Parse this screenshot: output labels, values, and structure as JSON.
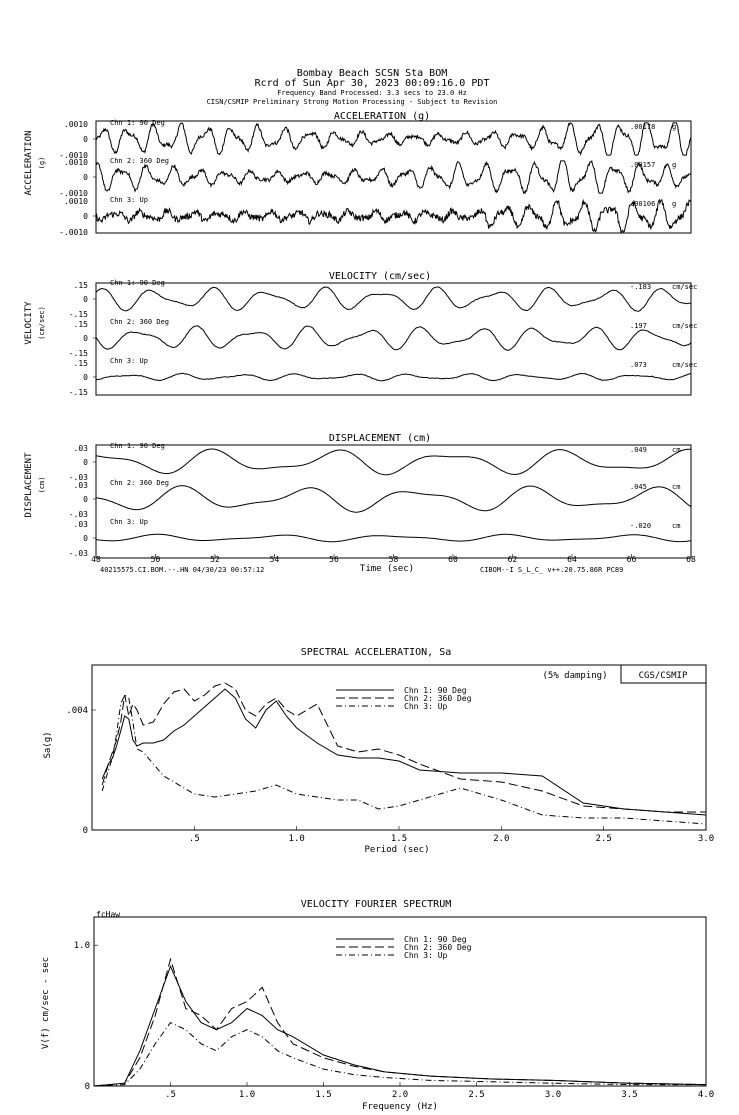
{
  "header": {
    "station": "Bombay Beach    SCSN Sta BOM",
    "record": "Rcrd of Sun Apr 30, 2023 00:09:16.0 PDT",
    "band": "Frequency Band Processed: 3.3 secs to 23.0 Hz",
    "note": "CISN/CSMIP Preliminary Strong Motion Processing - Subject to Revision"
  },
  "chart_data": [
    {
      "type": "line",
      "id": "acceleration",
      "title": "ACCELERATION (g)",
      "ylabel": "ACCELERATION",
      "yunit": "(g)",
      "xlim": [
        48,
        68
      ],
      "ylim": [
        -0.001,
        0.001
      ],
      "channels": [
        {
          "name": "Chn 1: 90 Deg",
          "peak": ".00178",
          "unit": "g",
          "scale_top": ".0010",
          "scale_zero": "0",
          "scale_bottom": "-.0010"
        },
        {
          "name": "Chn 2: 360 Deg",
          "peak": ".00157",
          "unit": "g",
          "scale_top": ".0010",
          "scale_zero": "0",
          "scale_bottom": "-.0010"
        },
        {
          "name": "Chn 3: Up",
          "peak": ".00106",
          "unit": "g",
          "scale_top": ".0010",
          "scale_zero": "0",
          "scale_bottom": "-.0010"
        }
      ]
    },
    {
      "type": "line",
      "id": "velocity",
      "title": "VELOCITY (cm/sec)",
      "ylabel": "VELOCITY",
      "yunit": "(cm/sec)",
      "xlim": [
        48,
        68
      ],
      "ylim": [
        -0.15,
        0.15
      ],
      "channels": [
        {
          "name": "Chn 1: 90 Deg",
          "peak": "-.183",
          "unit": "cm/sec",
          "scale_top": ".15",
          "scale_zero": "0",
          "scale_bottom": "-.15"
        },
        {
          "name": "Chn 2: 360 Deg",
          "peak": ".197",
          "unit": "cm/sec",
          "scale_top": ".15",
          "scale_zero": "0",
          "scale_bottom": "-.15"
        },
        {
          "name": "Chn 3: Up",
          "peak": ".073",
          "unit": "cm/sec",
          "scale_top": ".15",
          "scale_zero": "0",
          "scale_bottom": "-.15"
        }
      ]
    },
    {
      "type": "line",
      "id": "displacement",
      "title": "DISPLACEMENT (cm)",
      "ylabel": "DISPLACEMENT",
      "yunit": "(cm)",
      "xlabel": "Time (sec)",
      "xlim": [
        48,
        68
      ],
      "xticks": [
        "48",
        "50",
        "52",
        "54",
        "56",
        "58",
        "60",
        "62",
        "64",
        "66",
        "68"
      ],
      "ylim": [
        -0.03,
        0.03
      ],
      "footer_left": "40215575.CI.BOM.--.HN 04/30/23 00:57:12",
      "footer_right": "CIBOM--I  S_L_C_  v++.20.75.86R PC89",
      "channels": [
        {
          "name": "Chn 1: 90 Deg",
          "peak": ".049",
          "unit": "cm",
          "scale_top": ".03",
          "scale_zero": "0",
          "scale_bottom": "-.03"
        },
        {
          "name": "Chn 2: 360 Deg",
          "peak": ".045",
          "unit": "cm",
          "scale_top": ".03",
          "scale_zero": "0",
          "scale_bottom": "-.03"
        },
        {
          "name": "Chn 3: Up",
          "peak": "-.020",
          "unit": "cm",
          "scale_top": ".03",
          "scale_zero": "0",
          "scale_bottom": "-.03"
        }
      ]
    },
    {
      "type": "line",
      "id": "spectral",
      "title": "SPECTRAL ACCELERATION, Sa",
      "xlabel": "Period (sec)",
      "ylabel": "Sa(g)",
      "xlim": [
        0,
        3.0
      ],
      "ylim": [
        0,
        0.0055
      ],
      "xticks": [
        {
          "v": 0.5,
          "label": ".5"
        },
        {
          "v": 1.0,
          "label": "1.0"
        },
        {
          "v": 1.5,
          "label": "1.5"
        },
        {
          "v": 2.0,
          "label": "2.0"
        },
        {
          "v": 2.5,
          "label": "2.5"
        },
        {
          "v": 3.0,
          "label": "3.0"
        }
      ],
      "yticks": [
        {
          "v": 0,
          "label": "0"
        },
        {
          "v": 0.004,
          "label": ".004"
        }
      ],
      "damping_note": "(5% damping)",
      "agency": "CGS/CSMIP",
      "series": [
        {
          "name": "Chn 1: 90 Deg",
          "dash": "solid",
          "x": [
            0.05,
            0.08,
            0.1,
            0.12,
            0.14,
            0.16,
            0.18,
            0.2,
            0.22,
            0.25,
            0.3,
            0.35,
            0.4,
            0.45,
            0.5,
            0.55,
            0.6,
            0.65,
            0.7,
            0.75,
            0.8,
            0.85,
            0.9,
            0.95,
            1.0,
            1.1,
            1.2,
            1.3,
            1.4,
            1.5,
            1.6,
            1.8,
            2.0,
            2.2,
            2.4,
            2.6,
            2.8,
            3.0
          ],
          "values": [
            0.0017,
            0.0022,
            0.0024,
            0.0028,
            0.0033,
            0.0038,
            0.0037,
            0.003,
            0.0028,
            0.0029,
            0.0029,
            0.003,
            0.0033,
            0.0035,
            0.0038,
            0.0041,
            0.0044,
            0.0047,
            0.0044,
            0.0037,
            0.0034,
            0.004,
            0.0043,
            0.0038,
            0.0034,
            0.0029,
            0.0025,
            0.0024,
            0.0024,
            0.0023,
            0.002,
            0.0019,
            0.0019,
            0.0018,
            0.0009,
            0.0007,
            0.0006,
            0.0005
          ]
        },
        {
          "name": "Chn 2: 360 Deg",
          "dash": "long-dash",
          "x": [
            0.05,
            0.08,
            0.1,
            0.12,
            0.14,
            0.16,
            0.18,
            0.2,
            0.22,
            0.25,
            0.3,
            0.35,
            0.4,
            0.45,
            0.5,
            0.55,
            0.6,
            0.65,
            0.7,
            0.75,
            0.8,
            0.85,
            0.9,
            0.95,
            1.0,
            1.1,
            1.2,
            1.3,
            1.4,
            1.5,
            1.6,
            1.8,
            2.0,
            2.2,
            2.4,
            2.6,
            2.8,
            3.0
          ],
          "values": [
            0.0015,
            0.0022,
            0.0026,
            0.003,
            0.0036,
            0.0045,
            0.0038,
            0.0042,
            0.004,
            0.0035,
            0.0036,
            0.0042,
            0.0046,
            0.0047,
            0.0043,
            0.0045,
            0.0048,
            0.0049,
            0.0047,
            0.004,
            0.0038,
            0.0042,
            0.0044,
            0.004,
            0.0038,
            0.0042,
            0.0028,
            0.0026,
            0.0027,
            0.0025,
            0.0022,
            0.0017,
            0.0016,
            0.0013,
            0.0008,
            0.0007,
            0.0006,
            0.0006
          ]
        },
        {
          "name": "Chn 3: Up",
          "dash": "dash-dot",
          "x": [
            0.05,
            0.08,
            0.1,
            0.12,
            0.14,
            0.16,
            0.18,
            0.2,
            0.22,
            0.25,
            0.3,
            0.35,
            0.4,
            0.45,
            0.5,
            0.6,
            0.7,
            0.8,
            0.9,
            1.0,
            1.1,
            1.2,
            1.3,
            1.4,
            1.5,
            1.6,
            1.7,
            1.8,
            2.0,
            2.2,
            2.4,
            2.6,
            2.8,
            3.0
          ],
          "values": [
            0.0013,
            0.002,
            0.0024,
            0.0032,
            0.0042,
            0.0045,
            0.0044,
            0.0036,
            0.0027,
            0.0026,
            0.0022,
            0.0018,
            0.0016,
            0.0014,
            0.0012,
            0.0011,
            0.0012,
            0.0013,
            0.0015,
            0.0012,
            0.0011,
            0.001,
            0.001,
            0.0007,
            0.0008,
            0.001,
            0.0012,
            0.0014,
            0.001,
            0.0005,
            0.0004,
            0.0004,
            0.0003,
            0.0002
          ]
        }
      ]
    },
    {
      "type": "line",
      "id": "fourier",
      "title": "VELOCITY FOURIER SPECTRUM",
      "xlabel": "Frequency (Hz)",
      "ylabel": "V(f) cm/sec - sec",
      "corner_label": "fcHaw",
      "xlim": [
        0,
        4.0
      ],
      "ylim": [
        0,
        1.2
      ],
      "xticks": [
        {
          "v": 0.5,
          "label": ".5"
        },
        {
          "v": 1.0,
          "label": "1.0"
        },
        {
          "v": 1.5,
          "label": "1.5"
        },
        {
          "v": 2.0,
          "label": "2.0"
        },
        {
          "v": 2.5,
          "label": "2.5"
        },
        {
          "v": 3.0,
          "label": "3.0"
        },
        {
          "v": 3.5,
          "label": "3.5"
        },
        {
          "v": 4.0,
          "label": "4.0"
        }
      ],
      "yticks": [
        {
          "v": 0,
          "label": "0"
        },
        {
          "v": 1.0,
          "label": "1.0"
        }
      ],
      "series": [
        {
          "name": "Chn 1: 90 Deg",
          "dash": "solid",
          "x": [
            0,
            0.2,
            0.3,
            0.4,
            0.5,
            0.6,
            0.7,
            0.8,
            0.9,
            1.0,
            1.1,
            1.2,
            1.3,
            1.5,
            1.7,
            1.9,
            2.2,
            2.6,
            3.0,
            3.5,
            4.0
          ],
          "values": [
            0,
            0.02,
            0.25,
            0.55,
            0.85,
            0.6,
            0.45,
            0.4,
            0.45,
            0.55,
            0.5,
            0.4,
            0.35,
            0.22,
            0.15,
            0.1,
            0.07,
            0.05,
            0.04,
            0.02,
            0.01
          ]
        },
        {
          "name": "Chn 2: 360 Deg",
          "dash": "long-dash",
          "x": [
            0,
            0.2,
            0.3,
            0.4,
            0.5,
            0.6,
            0.7,
            0.8,
            0.9,
            1.0,
            1.1,
            1.2,
            1.3,
            1.5,
            1.7,
            1.9,
            2.2,
            2.6,
            3.0,
            3.5,
            4.0
          ],
          "values": [
            0,
            0.02,
            0.2,
            0.5,
            0.9,
            0.55,
            0.5,
            0.4,
            0.55,
            0.6,
            0.7,
            0.45,
            0.3,
            0.2,
            0.14,
            0.1,
            0.07,
            0.05,
            0.04,
            0.02,
            0.01
          ]
        },
        {
          "name": "Chn 3: Up",
          "dash": "dash-dot",
          "x": [
            0,
            0.2,
            0.3,
            0.4,
            0.5,
            0.6,
            0.7,
            0.8,
            0.9,
            1.0,
            1.1,
            1.2,
            1.3,
            1.5,
            1.7,
            1.9,
            2.2,
            2.6,
            3.0,
            3.5,
            4.0
          ],
          "values": [
            0,
            0.01,
            0.12,
            0.3,
            0.45,
            0.4,
            0.3,
            0.25,
            0.35,
            0.4,
            0.35,
            0.25,
            0.2,
            0.12,
            0.08,
            0.06,
            0.04,
            0.03,
            0.02,
            0.01,
            0.01
          ]
        }
      ]
    }
  ]
}
